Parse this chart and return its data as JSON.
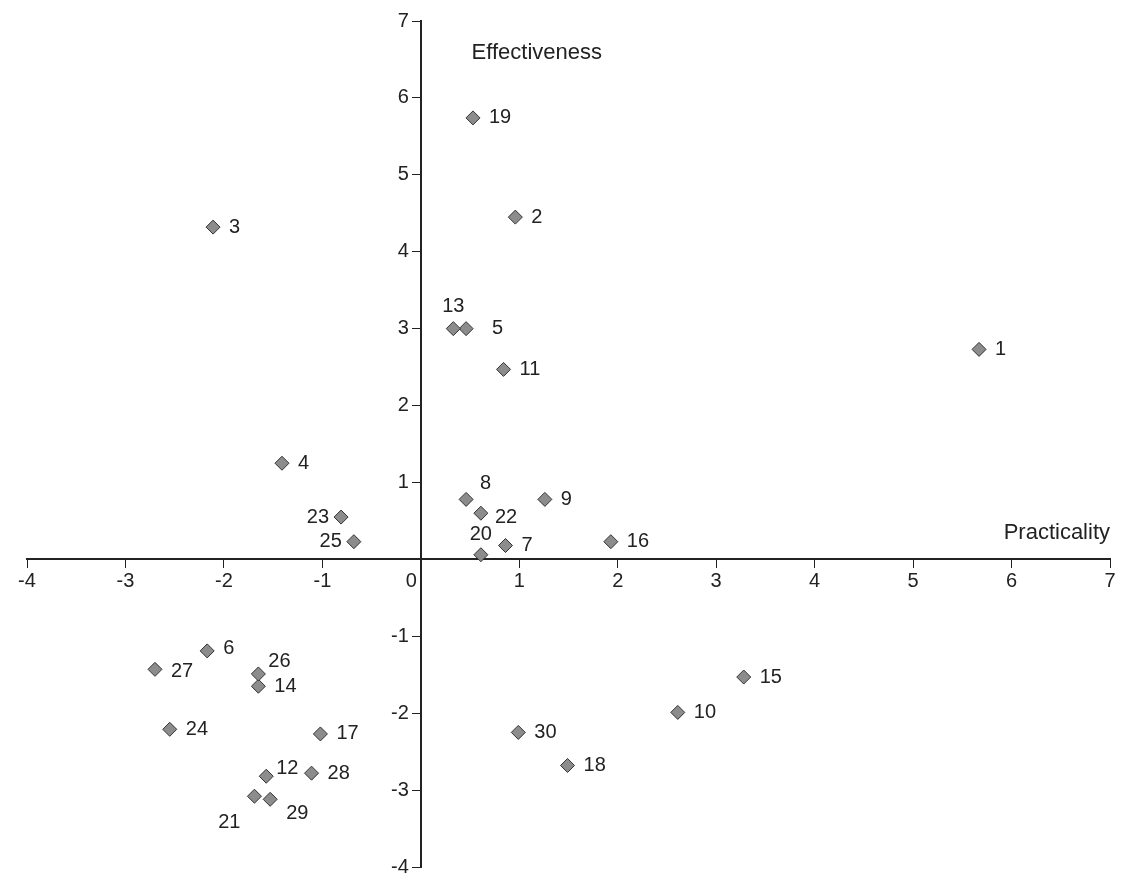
{
  "chart_data": {
    "type": "scatter",
    "xlabel": "Practicality",
    "ylabel": "Effectiveness",
    "xlim": [
      -4,
      7
    ],
    "ylim": [
      -4,
      7
    ],
    "xticks": [
      -4,
      -3,
      -2,
      -1,
      0,
      1,
      2,
      3,
      4,
      5,
      6,
      7
    ],
    "yticks": [
      -4,
      -3,
      -2,
      -1,
      {
        "value": 0,
        "label": null
      },
      1,
      2,
      3,
      4,
      5,
      6,
      7
    ],
    "grid": false,
    "legend": false,
    "marker": "diamond",
    "series": [
      {
        "color": "#8c8c8c",
        "x": [
          5.67,
          0.96,
          -2.11,
          -1.41,
          0.46,
          -2.17,
          0.86,
          0.46,
          1.26,
          2.61,
          0.84,
          -1.57,
          0.33,
          -1.65,
          3.28,
          1.93,
          -1.02,
          1.49,
          0.53,
          0.61,
          -1.69,
          0.61,
          -0.81,
          -2.55,
          -0.68,
          -1.65,
          -2.7,
          -1.11,
          -1.53,
          0.99
        ],
        "values": [
          2.73,
          4.45,
          4.32,
          1.25,
          3.0,
          -1.19,
          0.18,
          0.78,
          0.78,
          -1.99,
          2.47,
          -2.82,
          3.0,
          -1.65,
          -1.53,
          0.23,
          -2.27,
          -2.68,
          5.74,
          0.06,
          -3.08,
          0.6,
          0.55,
          -2.21,
          0.23,
          -1.49,
          -1.43,
          -2.78,
          -3.12,
          -2.25
        ]
      }
    ],
    "annotations": [
      {
        "text": "1",
        "x": 5.67,
        "y": 2.73
      },
      {
        "text": "2",
        "x": 0.96,
        "y": 4.45
      },
      {
        "text": "3",
        "x": -2.11,
        "y": 4.32
      },
      {
        "text": "4",
        "x": -1.41,
        "y": 1.25
      },
      {
        "text": "5",
        "x": 0.46,
        "y": 3.0
      },
      {
        "text": "6",
        "x": -2.17,
        "y": -1.19
      },
      {
        "text": "7",
        "x": 0.86,
        "y": 0.18
      },
      {
        "text": "8",
        "x": 0.46,
        "y": 0.78
      },
      {
        "text": "9",
        "x": 1.26,
        "y": 0.78
      },
      {
        "text": "10",
        "x": 2.61,
        "y": -1.99
      },
      {
        "text": "11",
        "x": 0.84,
        "y": 2.47
      },
      {
        "text": "12",
        "x": -1.57,
        "y": -2.82
      },
      {
        "text": "13",
        "x": 0.33,
        "y": 3.0
      },
      {
        "text": "14",
        "x": -1.65,
        "y": -1.65
      },
      {
        "text": "15",
        "x": 3.28,
        "y": -1.53
      },
      {
        "text": "16",
        "x": 1.93,
        "y": 0.23
      },
      {
        "text": "17",
        "x": -1.02,
        "y": -2.27
      },
      {
        "text": "18",
        "x": 1.49,
        "y": -2.68
      },
      {
        "text": "19",
        "x": 0.53,
        "y": 5.74
      },
      {
        "text": "20",
        "x": 0.61,
        "y": 0.06
      },
      {
        "text": "21",
        "x": -1.69,
        "y": -3.08
      },
      {
        "text": "22",
        "x": 0.61,
        "y": 0.6
      },
      {
        "text": "23",
        "x": -0.81,
        "y": 0.55
      },
      {
        "text": "24",
        "x": -2.55,
        "y": -2.21
      },
      {
        "text": "25",
        "x": -0.68,
        "y": 0.23
      },
      {
        "text": "26",
        "x": -1.65,
        "y": -1.49
      },
      {
        "text": "27",
        "x": -2.7,
        "y": -1.43
      },
      {
        "text": "28",
        "x": -1.11,
        "y": -2.78
      },
      {
        "text": "29",
        "x": -1.53,
        "y": -3.12
      },
      {
        "text": "30",
        "x": 0.99,
        "y": -2.25
      }
    ]
  }
}
